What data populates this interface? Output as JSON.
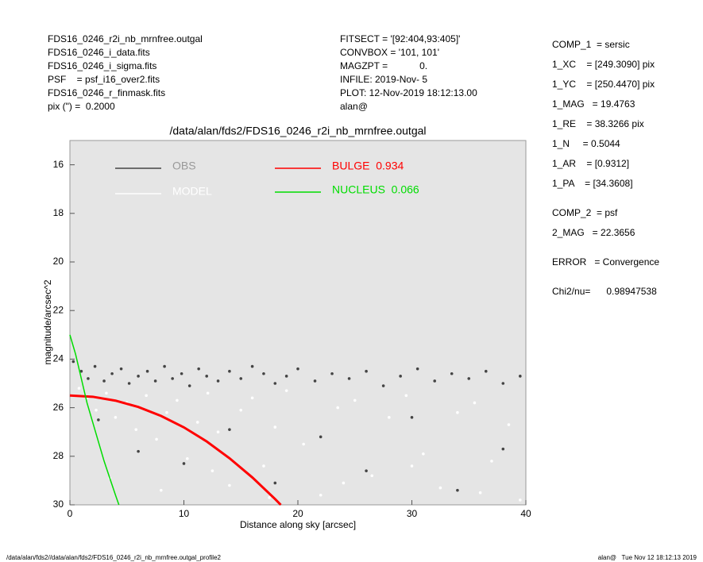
{
  "header": {
    "left": [
      "FDS16_0246_r2i_nb_mrnfree.outgal",
      "FDS16_0246_i_data.fits",
      "FDS16_0246_i_sigma.fits",
      "PSF    = psf_i16_over2.fits",
      "FDS16_0246_r_finmask.fits",
      "pix (\") =  0.2000"
    ],
    "middle": [
      "FITSECT = '[92:404,93:405]'",
      "CONVBOX = '101, 101'",
      "MAGZPT =            0.",
      "INFILE: 2019-Nov- 5",
      "PLOT: 12-Nov-2019 18:12:13.00",
      "alan@"
    ],
    "right": [
      "COMP_1  = sersic",
      "1_XC    = [249.3090] pix",
      "1_YC    = [250.4470] pix",
      "1_MAG   = 19.4763",
      "1_RE    = 38.3266 pix",
      "1_N     = 0.5044",
      "1_AR    = [0.9312]",
      "1_PA    = [34.3608]",
      "COMP_2  = psf",
      "2_MAG   = 22.3656",
      "ERROR   = Convergence",
      "Chi2/nu=      0.98947538"
    ]
  },
  "footer": {
    "left": "/data/alan/fds2//data/alan/fds2/FDS16_0246_r2i_nb_mrnfree.outgal_profile2",
    "right": "alan@   Tue Nov 12 18:12:13 2019"
  },
  "chart_data": {
    "type": "scatter",
    "title": "/data/alan/fds2/FDS16_0246_r2i_nb_mrnfree.outgal",
    "x_label": "Distance along sky [arcsec]",
    "y_label": "magnitude/arcsec^2",
    "xlim": [
      0,
      40
    ],
    "xticks": [
      0,
      10,
      20,
      30,
      40
    ],
    "ylim": [
      30,
      15
    ],
    "yticks": [
      16,
      18,
      20,
      22,
      24,
      26,
      28,
      30
    ],
    "series": [
      {
        "name": "OBS",
        "color": "#444444",
        "style": "points",
        "x": [
          0.3,
          1,
          1.6,
          2.2,
          3,
          3.7,
          4.5,
          5.2,
          6,
          6.8,
          7.5,
          8.3,
          9,
          9.8,
          10.5,
          11.3,
          12,
          13,
          14,
          15,
          16,
          17,
          18,
          19,
          20,
          21.5,
          23,
          24.5,
          26,
          27.5,
          29,
          30.5,
          32,
          33.5,
          35,
          36.5,
          38,
          39.5,
          2.5,
          6,
          10,
          14,
          18,
          22,
          26,
          30,
          34,
          38
        ],
        "values": [
          24.1,
          24.5,
          24.8,
          24.3,
          24.9,
          24.6,
          24.4,
          25,
          24.7,
          24.5,
          24.9,
          24.3,
          24.8,
          24.6,
          25.1,
          24.4,
          24.7,
          24.9,
          24.5,
          24.8,
          24.3,
          24.6,
          25,
          24.7,
          24.4,
          24.9,
          24.6,
          24.8,
          24.5,
          25.1,
          24.7,
          24.4,
          24.9,
          24.6,
          24.8,
          24.5,
          25,
          24.7,
          26.5,
          27.8,
          28.3,
          26.9,
          29.1,
          27.2,
          28.6,
          26.4,
          29.4,
          27.7
        ]
      },
      {
        "name": "MODEL",
        "color": "#ffffff",
        "style": "points",
        "x": [
          0.8,
          1.5,
          2.3,
          3.2,
          4,
          5,
          5.8,
          6.7,
          7.6,
          8.5,
          9.4,
          10.3,
          11.2,
          12.1,
          13,
          14,
          15,
          16,
          17,
          18,
          19,
          20.5,
          22,
          23.5,
          25,
          26.5,
          28,
          29.5,
          31,
          32.5,
          34,
          35.5,
          37,
          38.5,
          39.5,
          3.5,
          8,
          12.5,
          17.5,
          24,
          30,
          36
        ],
        "values": [
          25.2,
          25.6,
          26.1,
          25.4,
          26.4,
          25.8,
          26.9,
          25.5,
          27.3,
          26.2,
          25.7,
          28.1,
          26.6,
          25.4,
          27,
          29.2,
          26.1,
          25.6,
          28.4,
          26.8,
          25.3,
          27.5,
          29.6,
          26,
          25.7,
          28.8,
          26.4,
          25.5,
          27.9,
          29.3,
          26.2,
          25.8,
          28.2,
          26.7,
          29.8,
          28.9,
          29.4,
          28.6,
          29.7,
          29.1,
          28.4,
          29.5
        ]
      },
      {
        "name": "BULGE  0.934",
        "color": "#ff0000",
        "style": "line",
        "x": [
          0,
          2,
          4,
          6,
          8,
          10,
          12,
          14,
          16,
          18,
          18.5
        ],
        "values": [
          25.5,
          25.55,
          25.71,
          25.97,
          26.34,
          26.81,
          27.39,
          28.08,
          28.87,
          29.76,
          30
        ]
      },
      {
        "name": "NUCLEUS  0.066",
        "color": "#00dd00",
        "style": "line",
        "x": [
          0,
          0.5,
          1,
          1.5,
          2,
          2.5,
          3,
          3.5,
          4,
          4.3
        ],
        "values": [
          23,
          23.8,
          24.8,
          25.8,
          26.6,
          27.4,
          28.2,
          28.9,
          29.6,
          30
        ]
      }
    ]
  }
}
